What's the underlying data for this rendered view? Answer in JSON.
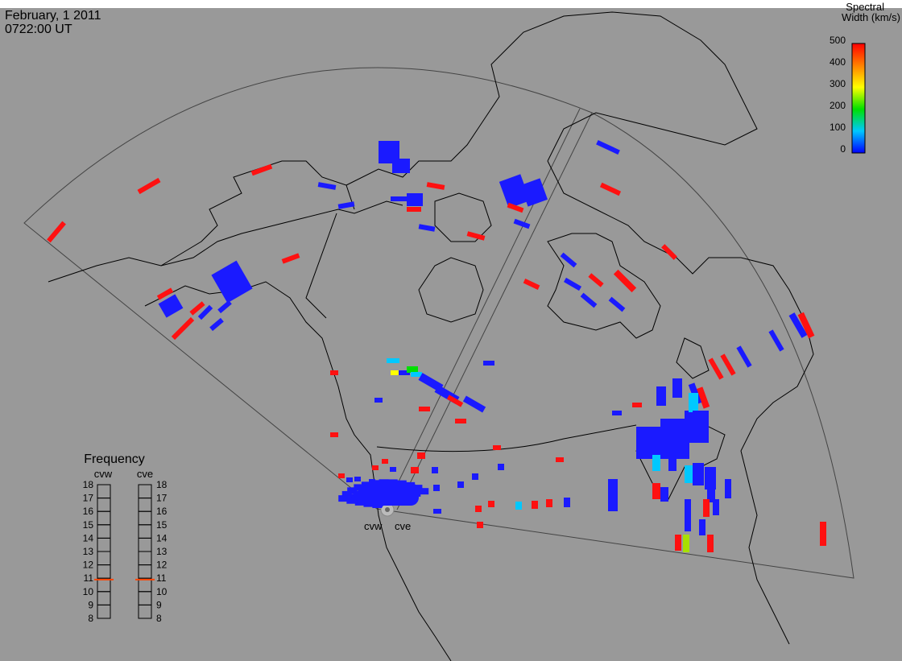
{
  "header": {
    "date": "February, 1 2011",
    "time": "0722:00 UT"
  },
  "colorbar": {
    "title_line1": "Spectral",
    "title_line2": "Width (km/s)",
    "ticks": [
      "500",
      "400",
      "300",
      "200",
      "100",
      "0"
    ],
    "min": 0,
    "max": 500,
    "stops": [
      "#0000ff",
      "#00c8ff",
      "#00e000",
      "#ffff00",
      "#ff8000",
      "#ff0000"
    ]
  },
  "frequency": {
    "title": "Frequency",
    "radars": [
      {
        "code": "cvw",
        "value": 10.9
      },
      {
        "code": "cve",
        "value": 10.9
      }
    ],
    "ticks": [
      "18",
      "17",
      "16",
      "15",
      "14",
      "13",
      "12",
      "11",
      "10",
      "9",
      "8"
    ],
    "min": 8,
    "max": 18
  },
  "sites": [
    {
      "code": "cvw"
    },
    {
      "code": "cve"
    }
  ],
  "colors": {
    "background": "#999999",
    "low_width": "#1a1aff",
    "high_width": "#ff1111",
    "frequency_marker": "#ff4400"
  }
}
